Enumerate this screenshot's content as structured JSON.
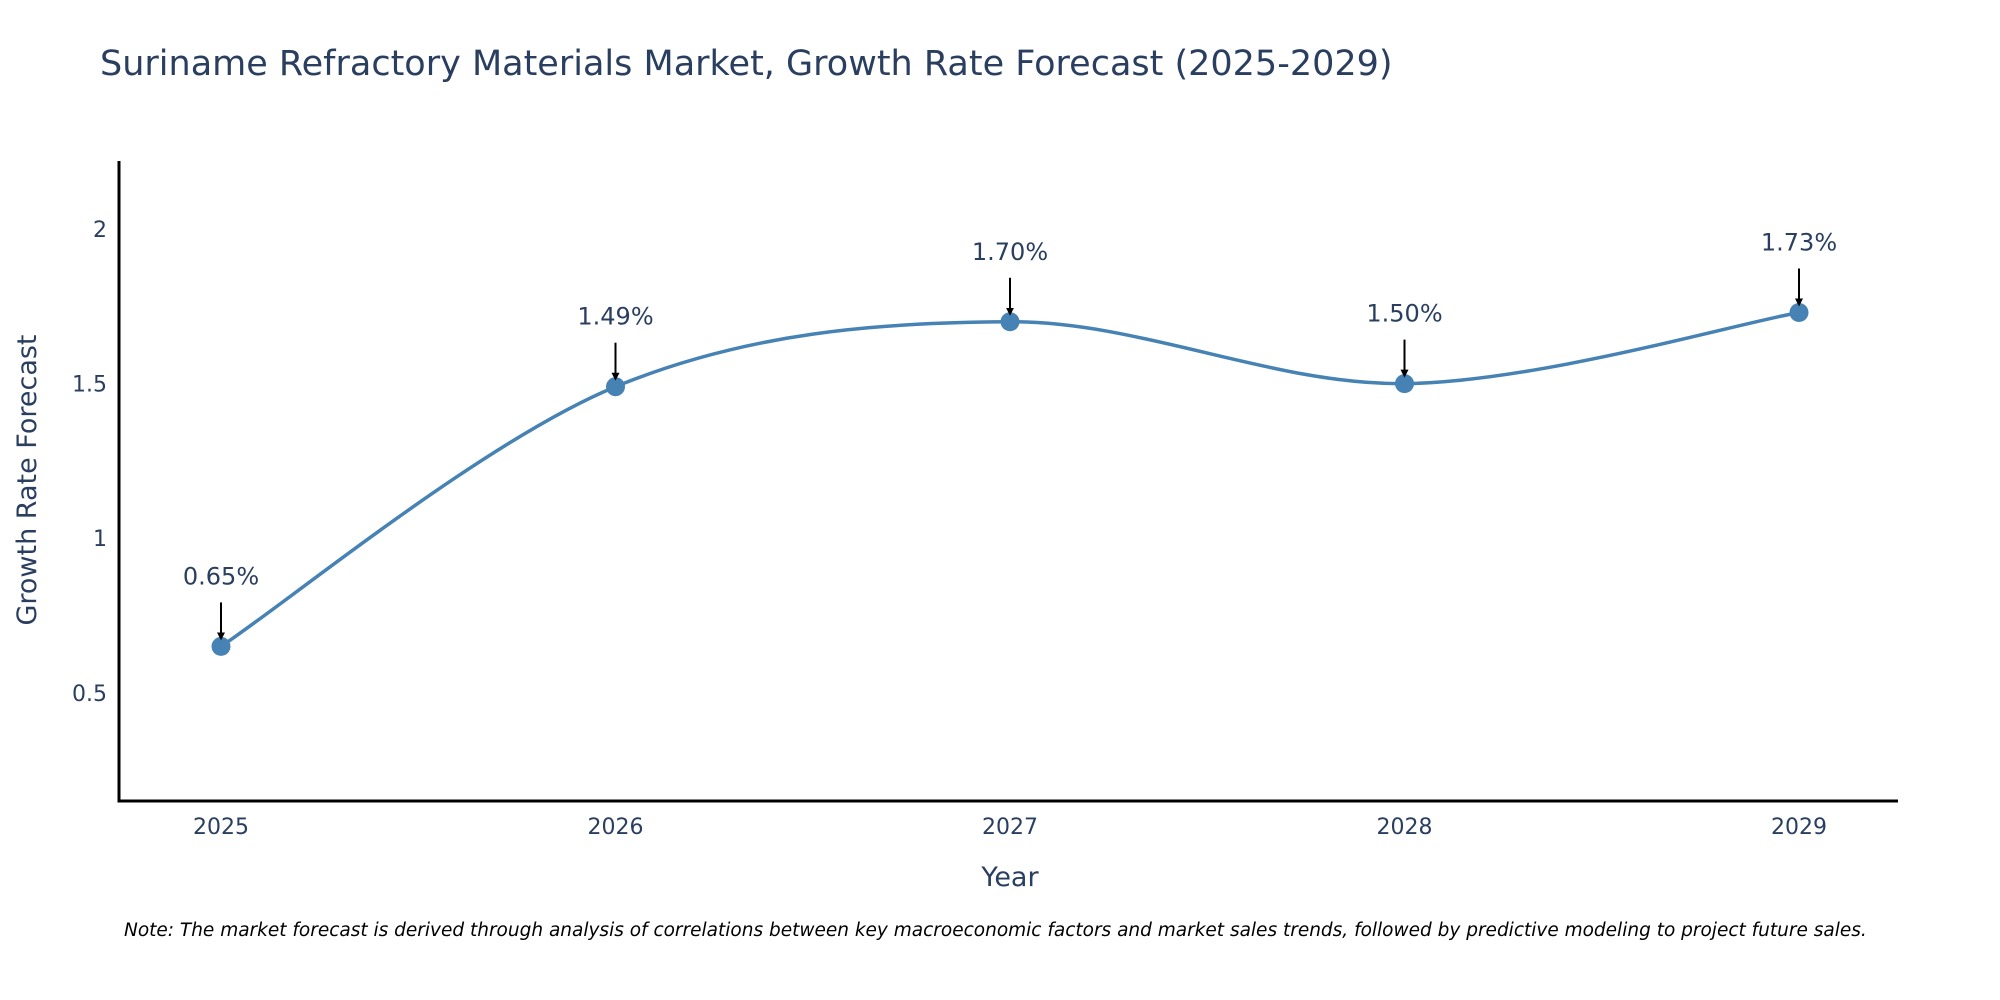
{
  "chart_data": {
    "type": "line",
    "title": "Suriname Refractory Materials Market, Growth Rate Forecast (2025-2029)",
    "xlabel": "Year",
    "ylabel": "Growth Rate Forecast",
    "categories": [
      "2025",
      "2026",
      "2027",
      "2028",
      "2029"
    ],
    "values": [
      0.65,
      1.49,
      1.7,
      1.5,
      1.73
    ],
    "data_labels": [
      "0.65%",
      "1.49%",
      "1.70%",
      "1.50%",
      "1.73%"
    ],
    "y_ticks": [
      0.5,
      1,
      1.5,
      2
    ],
    "y_tick_labels": [
      "0.5",
      "1",
      "1.5",
      "2"
    ],
    "ylim": [
      0.15,
      2.22
    ],
    "grid": false,
    "line_shape": "spline"
  },
  "note": "Note: The market forecast is derived through analysis of correlations between key macroeconomic factors and market sales trends, followed by predictive modeling to project future sales.",
  "colors": {
    "line": "#4682b4",
    "text": "#2a3f5f",
    "axis": "#000000",
    "arrow": "#000000"
  }
}
